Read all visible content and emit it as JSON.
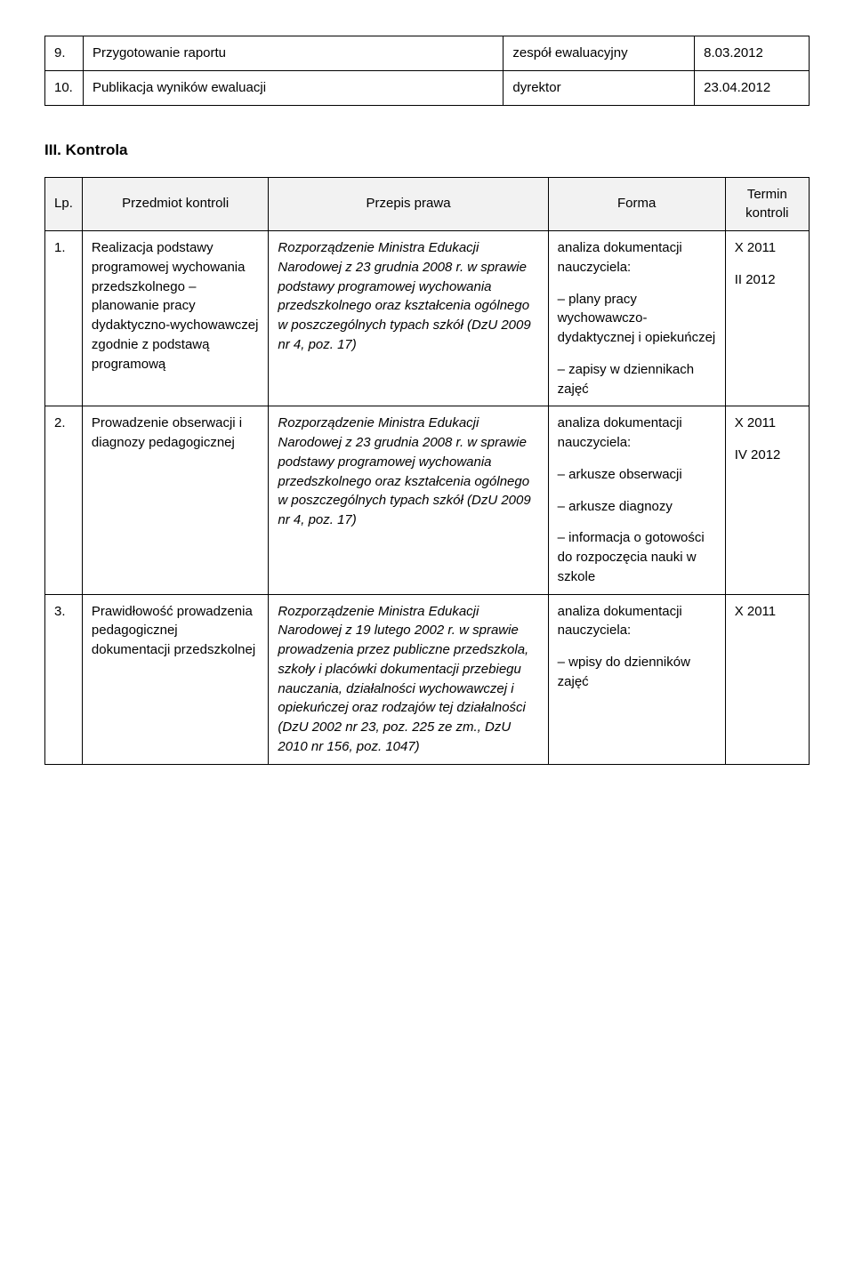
{
  "table1": {
    "rows": [
      {
        "num": "9.",
        "desc": "Przygotowanie raportu",
        "resp": "zespół ewaluacyjny",
        "date": "8.03.2012"
      },
      {
        "num": "10.",
        "desc": "Publikacja wyników ewaluacji",
        "resp": "dyrektor",
        "date": "23.04.2012"
      }
    ]
  },
  "section_heading": "III. Kontrola",
  "table2": {
    "headers": {
      "num": "Lp.",
      "subject": "Przedmiot kontroli",
      "law": "Przepis prawa",
      "form": "Forma",
      "term": "Termin kontroli"
    },
    "rows": [
      {
        "num": "1.",
        "subject": "Realizacja podstawy programowej wychowania przedszkolnego – planowanie pracy dydaktyczno-wychowawczej zgodnie z podstawą programową",
        "law": "Rozporządzenie Ministra Edukacji Narodowej z 23 grudnia 2008 r. w sprawie podstawy programowej wychowania przedszkolnego oraz kształcenia ogólnego w poszczególnych typach szkół (DzU 2009 nr 4, poz. 17)",
        "form_blocks": [
          "analiza dokumentacji nauczyciela:",
          "– plany pracy wychowawczo-dydaktycznej i opiekuńczej",
          "– zapisy w dziennikach zajęć"
        ],
        "term_blocks": [
          "X 2011",
          "II 2012"
        ]
      },
      {
        "num": "2.",
        "subject": "Prowadzenie obserwacji i diagnozy pedagogicznej",
        "law": "Rozporządzenie Ministra Edukacji Narodowej z 23 grudnia 2008 r. w sprawie podstawy programowej wychowania przedszkolnego oraz kształcenia ogólnego w poszczególnych typach szkół (DzU 2009 nr 4, poz. 17)",
        "form_blocks": [
          "analiza dokumentacji nauczyciela:",
          "– arkusze obserwacji",
          "– arkusze diagnozy",
          "– informacja o gotowości do rozpoczęcia nauki w szkole"
        ],
        "term_blocks": [
          "X 2011",
          "IV 2012"
        ]
      },
      {
        "num": "3.",
        "subject": "Prawidłowość prowadzenia pedagogicznej dokumentacji przedszkolnej",
        "law": "Rozporządzenie Ministra Edukacji Narodowej z 19 lutego 2002 r. w sprawie prowadzenia przez publiczne przedszkola, szkoły i placówki dokumentacji przebiegu nauczania, działalności wychowawczej i opiekuńczej oraz rodzajów tej działalności (DzU 2002 nr 23, poz. 225 ze zm., DzU 2010 nr 156, poz. 1047)",
        "form_blocks": [
          "analiza dokumentacji nauczyciela:",
          "– wpisy do dzienników zajęć"
        ],
        "term_blocks": [
          "X 2011"
        ]
      }
    ]
  }
}
